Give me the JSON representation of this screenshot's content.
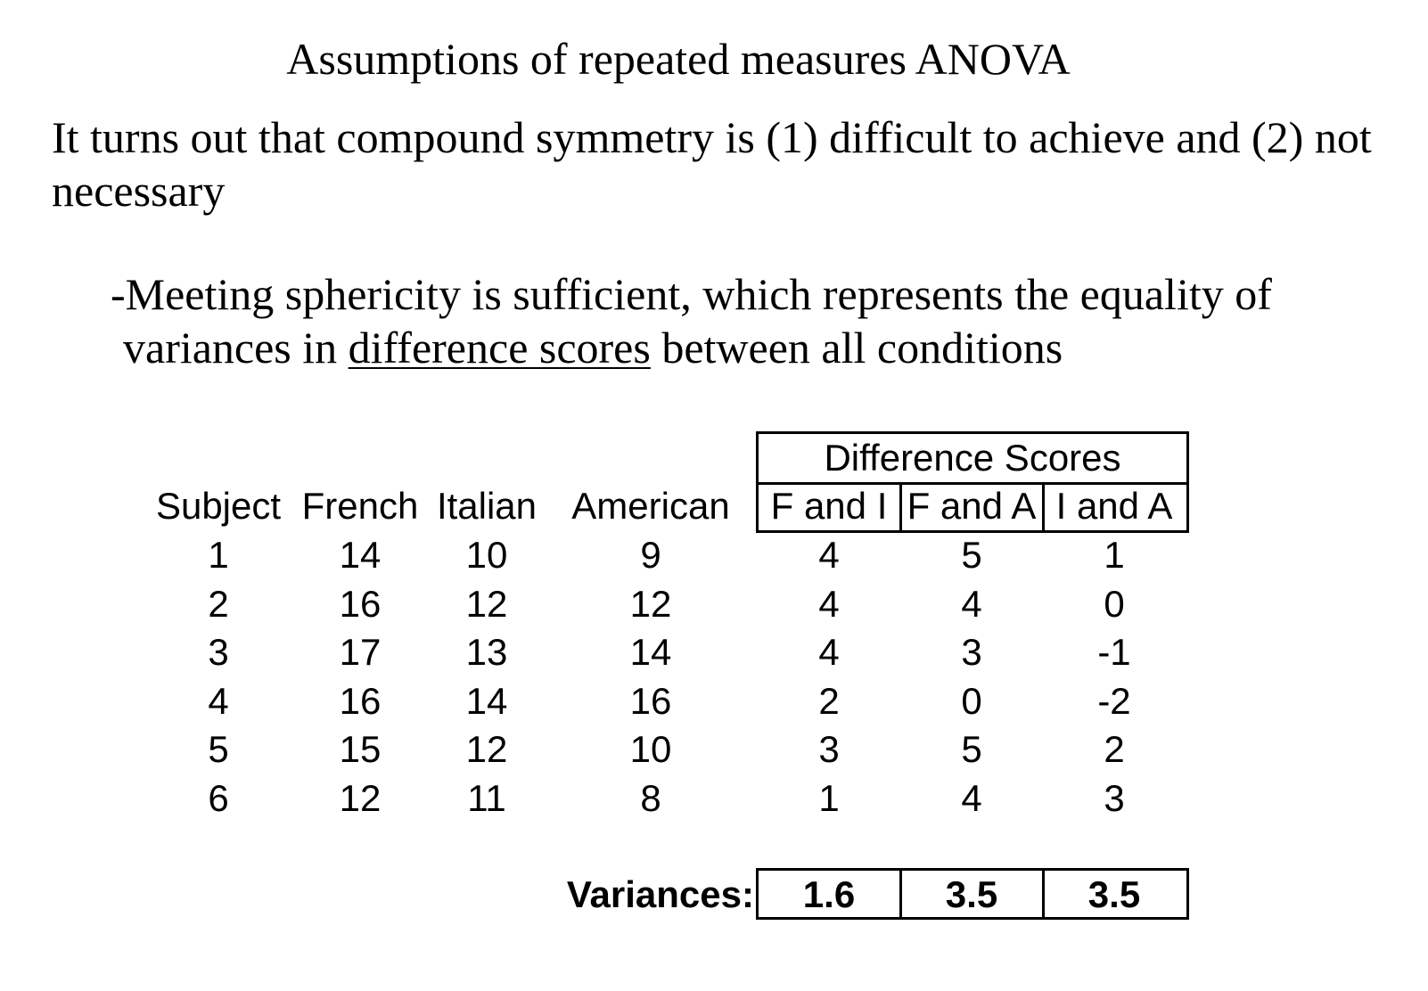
{
  "title": "Assumptions of repeated measures ANOVA",
  "paragraph1": "It turns out that compound symmetry is (1) difficult to achieve and (2) not necessary",
  "paragraph2": {
    "line1": "-Meeting sphericity is sufficient, which represents the equality of",
    "line2_before": "variances in ",
    "line2_underlined": "difference scores",
    "line2_after": " between all conditions"
  },
  "table": {
    "group_header": "Difference Scores",
    "columns": [
      "Subject",
      "French",
      "Italian",
      "American",
      "F and I",
      "F and A",
      "I and A"
    ],
    "rows": [
      [
        "1",
        "14",
        "10",
        "9",
        "4",
        "5",
        "1"
      ],
      [
        "2",
        "16",
        "12",
        "12",
        "4",
        "4",
        "0"
      ],
      [
        "3",
        "17",
        "13",
        "14",
        "4",
        "3",
        "-1"
      ],
      [
        "4",
        "16",
        "14",
        "16",
        "2",
        "0",
        "-2"
      ],
      [
        "5",
        "15",
        "12",
        "10",
        "3",
        "5",
        "2"
      ],
      [
        "6",
        "12",
        "11",
        "8",
        "1",
        "4",
        "3"
      ]
    ],
    "variances_label": "Variances:",
    "variances": [
      "1.6",
      "3.5",
      "3.5"
    ]
  }
}
